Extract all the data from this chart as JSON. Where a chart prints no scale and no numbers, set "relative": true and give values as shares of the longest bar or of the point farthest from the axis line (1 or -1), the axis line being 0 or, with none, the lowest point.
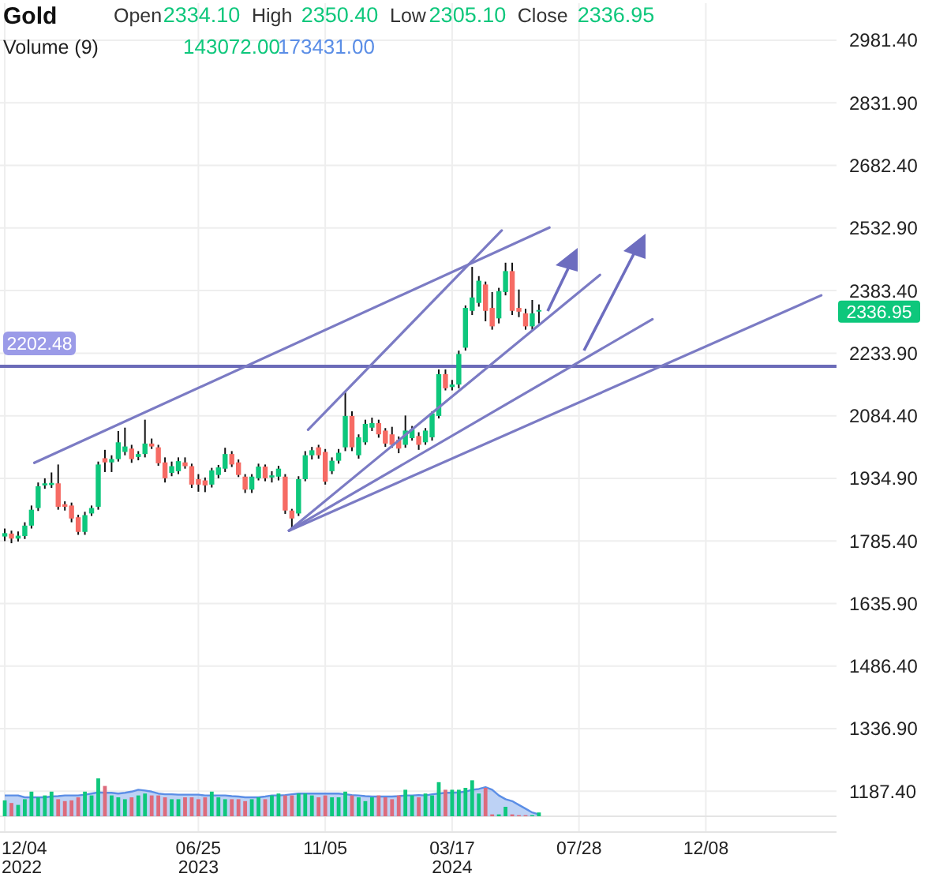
{
  "chart_data": [
    {
      "type": "candlestick",
      "title": "Gold",
      "annotations": [
        "Open",
        "2334.10",
        "High",
        "2350.40",
        "Low",
        "2305.10",
        "Close",
        "2336.95",
        "2336.95"
      ],
      "x": [
        "2022-12-04",
        "2022-12-11",
        "2022-12-18",
        "2022-12-25",
        "2023-01-01",
        "2023-01-08",
        "2023-01-15",
        "2023-01-22",
        "2023-01-29",
        "2023-02-05",
        "2023-02-12",
        "2023-02-19",
        "2023-02-26",
        "2023-03-05",
        "2023-03-12",
        "2023-03-19",
        "2023-03-26",
        "2023-04-02",
        "2023-04-09",
        "2023-04-16",
        "2023-04-23",
        "2023-04-30",
        "2023-05-07",
        "2023-05-14",
        "2023-05-21",
        "2023-05-28",
        "2023-06-04",
        "2023-06-11",
        "2023-06-18",
        "2023-06-25",
        "2023-07-02",
        "2023-07-09",
        "2023-07-16",
        "2023-07-23",
        "2023-07-30",
        "2023-08-06",
        "2023-08-13",
        "2023-08-20",
        "2023-08-27",
        "2023-09-03",
        "2023-09-10",
        "2023-09-17",
        "2023-09-24",
        "2023-10-01",
        "2023-10-08",
        "2023-10-15",
        "2023-10-22",
        "2023-10-29",
        "2023-11-05",
        "2023-11-12",
        "2023-11-19",
        "2023-11-26",
        "2023-12-03",
        "2023-12-10",
        "2023-12-17",
        "2023-12-24",
        "2023-12-31",
        "2024-01-07",
        "2024-01-14",
        "2024-01-21",
        "2024-01-28",
        "2024-02-04",
        "2024-02-11",
        "2024-02-18",
        "2024-02-25",
        "2024-03-03",
        "2024-03-10",
        "2024-03-17",
        "2024-03-24",
        "2024-03-31",
        "2024-04-07",
        "2024-04-14",
        "2024-04-21",
        "2024-04-28",
        "2024-05-05",
        "2024-05-12",
        "2024-05-19",
        "2024-05-26",
        "2024-06-02",
        "2024-06-09",
        "2024-06-16"
      ],
      "ohlc": [
        [
          1796,
          1815,
          1785,
          1804
        ],
        [
          1803,
          1810,
          1780,
          1791
        ],
        [
          1791,
          1808,
          1784,
          1798
        ],
        [
          1797,
          1830,
          1790,
          1822
        ],
        [
          1822,
          1870,
          1815,
          1860
        ],
        [
          1864,
          1925,
          1857,
          1916
        ],
        [
          1918,
          1935,
          1910,
          1923
        ],
        [
          1919,
          1949,
          1912,
          1924
        ],
        [
          1923,
          1968,
          1860,
          1867
        ],
        [
          1873,
          1880,
          1858,
          1867
        ],
        [
          1870,
          1877,
          1830,
          1839
        ],
        [
          1842,
          1848,
          1800,
          1807
        ],
        [
          1807,
          1855,
          1800,
          1847
        ],
        [
          1851,
          1870,
          1845,
          1864
        ],
        [
          1867,
          1975,
          1860,
          1968
        ],
        [
          1983,
          2003,
          1950,
          1973
        ],
        [
          1973,
          1990,
          1950,
          1981
        ],
        [
          1981,
          2048,
          1975,
          2021
        ],
        [
          1998,
          2056,
          1990,
          2011
        ],
        [
          2006,
          2015,
          1972,
          1981
        ],
        [
          1986,
          2000,
          1978,
          1993
        ],
        [
          1993,
          2075,
          1985,
          2018
        ],
        [
          2018,
          2030,
          2005,
          2011
        ],
        [
          2009,
          2015,
          1965,
          1971
        ],
        [
          1973,
          1985,
          1925,
          1935
        ],
        [
          1948,
          1975,
          1940,
          1964
        ],
        [
          1952,
          1985,
          1945,
          1976
        ],
        [
          1973,
          1985,
          1958,
          1964
        ],
        [
          1964,
          1970,
          1912,
          1920
        ],
        [
          1933,
          1945,
          1903,
          1920
        ],
        [
          1930,
          1937,
          1902,
          1918
        ],
        [
          1920,
          1960,
          1913,
          1954
        ],
        [
          1943,
          1967,
          1935,
          1961
        ],
        [
          1958,
          2008,
          1950,
          1993
        ],
        [
          1993,
          2000,
          1962,
          1968
        ],
        [
          1973,
          1980,
          1938,
          1943
        ],
        [
          1939,
          1945,
          1900,
          1908
        ],
        [
          1908,
          1945,
          1900,
          1939
        ],
        [
          1935,
          1970,
          1930,
          1963
        ],
        [
          1963,
          1968,
          1928,
          1935
        ],
        [
          1937,
          1952,
          1925,
          1942
        ],
        [
          1939,
          1965,
          1930,
          1958
        ],
        [
          1939,
          1945,
          1850,
          1858
        ],
        [
          1858,
          1862,
          1815,
          1839
        ],
        [
          1851,
          1940,
          1845,
          1933
        ],
        [
          1933,
          2000,
          1928,
          1990
        ],
        [
          1990,
          2010,
          1980,
          2002
        ],
        [
          2009,
          2015,
          1982,
          1990
        ],
        [
          1998,
          2005,
          1920,
          1927
        ],
        [
          1952,
          1985,
          1945,
          1977
        ],
        [
          1977,
          2005,
          1970,
          1996
        ],
        [
          2009,
          2144,
          2000,
          2084
        ],
        [
          2084,
          2095,
          2000,
          2009
        ],
        [
          1990,
          2040,
          1982,
          2033
        ],
        [
          2021,
          2075,
          2015,
          2065
        ],
        [
          2056,
          2080,
          2048,
          2067
        ],
        [
          2067,
          2075,
          2032,
          2040
        ],
        [
          2049,
          2055,
          2010,
          2018
        ],
        [
          2040,
          2058,
          2008,
          2015
        ],
        [
          2027,
          2035,
          1995,
          2006
        ],
        [
          2015,
          2085,
          2008,
          2049
        ],
        [
          2031,
          2060,
          2025,
          2052
        ],
        [
          2036,
          2045,
          2003,
          2015
        ],
        [
          2021,
          2055,
          2015,
          2049
        ],
        [
          2033,
          2095,
          2025,
          2090
        ],
        [
          2084,
          2195,
          2078,
          2184
        ],
        [
          2184,
          2195,
          2145,
          2150
        ],
        [
          2153,
          2170,
          2145,
          2159
        ],
        [
          2159,
          2240,
          2150,
          2232
        ],
        [
          2247,
          2348,
          2240,
          2342
        ],
        [
          2335,
          2440,
          2325,
          2367
        ],
        [
          2354,
          2418,
          2345,
          2407
        ],
        [
          2398,
          2405,
          2310,
          2335
        ],
        [
          2342,
          2380,
          2290,
          2298
        ],
        [
          2317,
          2390,
          2305,
          2382
        ],
        [
          2380,
          2450,
          2372,
          2430
        ],
        [
          2430,
          2450,
          2325,
          2335
        ],
        [
          2342,
          2386,
          2320,
          2333
        ],
        [
          2329,
          2340,
          2290,
          2298
        ],
        [
          2298,
          2361,
          2290,
          2329
        ],
        [
          2334.1,
          2350.4,
          2305.1,
          2336.95
        ]
      ],
      "colors": [
        "#0ec77c",
        "#f66b64",
        "#0ec77c",
        "#0ec77c",
        "#0ec77c",
        "#0ec77c",
        "#0ec77c",
        "#0ec77c",
        "#f66b64",
        "#f66b64",
        "#f66b64",
        "#f66b64",
        "#0ec77c",
        "#0ec77c",
        "#0ec77c",
        "#f66b64",
        "#0ec77c",
        "#0ec77c",
        "#0ec77c",
        "#f66b64",
        "#0ec77c",
        "#0ec77c",
        "#f66b64",
        "#f66b64",
        "#f66b64",
        "#0ec77c",
        "#0ec77c",
        "#f66b64",
        "#f66b64",
        "#f66b64",
        "#f66b64",
        "#0ec77c",
        "#0ec77c",
        "#0ec77c",
        "#f66b64",
        "#f66b64",
        "#f66b64",
        "#0ec77c",
        "#0ec77c",
        "#f66b64",
        "#0ec77c",
        "#0ec77c",
        "#f66b64",
        "#f66b64",
        "#0ec77c",
        "#0ec77c",
        "#0ec77c",
        "#f66b64",
        "#f66b64",
        "#0ec77c",
        "#0ec77c",
        "#0ec77c",
        "#f66b64",
        "#0ec77c",
        "#0ec77c",
        "#0ec77c",
        "#f66b64",
        "#f66b64",
        "#f66b64",
        "#f66b64",
        "#0ec77c",
        "#0ec77c",
        "#f66b64",
        "#0ec77c",
        "#0ec77c",
        "#0ec77c",
        "#f66b64",
        "#0ec77c",
        "#0ec77c",
        "#0ec77c",
        "#0ec77c",
        "#0ec77c",
        "#f66b64",
        "#f66b64",
        "#0ec77c",
        "#0ec77c",
        "#f66b64",
        "#f66b64",
        "#f66b64",
        "#0ec77c",
        "#0ec77c"
      ],
      "xlim": [
        "2022-11-29",
        "2025-04-24"
      ],
      "xticks": [
        {
          "value": "2022-12-04",
          "label": "12/04\n2022"
        },
        {
          "value": "2023-06-25",
          "label": "06/25\n2023"
        },
        {
          "value": "2023-11-05",
          "label": "11/05"
        },
        {
          "value": "2024-03-17",
          "label": "03/17\n2024"
        },
        {
          "value": "2024-07-28",
          "label": "07/28"
        },
        {
          "value": "2024-12-08",
          "label": "12/08"
        }
      ],
      "ylim": [
        1090,
        3070
      ],
      "yticks": [
        {
          "value": 1187.4,
          "label": "1187.40"
        },
        {
          "value": 1336.9,
          "label": "1336.90"
        },
        {
          "value": 1486.4,
          "label": "1486.40"
        },
        {
          "value": 1635.9,
          "label": "1635.90"
        },
        {
          "value": 1785.4,
          "label": "1785.40"
        },
        {
          "value": 1934.9,
          "label": "1934.90"
        },
        {
          "value": 2084.4,
          "label": "2084.40"
        },
        {
          "value": 2233.9,
          "label": "2233.90"
        },
        {
          "value": 2383.4,
          "label": "2383.40"
        },
        {
          "value": 2532.9,
          "label": "2532.90"
        },
        {
          "value": 2682.4,
          "label": "2682.40"
        },
        {
          "value": 2831.9,
          "label": "2831.90"
        },
        {
          "value": 2981.4,
          "label": "2981.40"
        }
      ],
      "grid": true,
      "ref_lines": [
        {
          "axis": "y",
          "value": 2202.48,
          "label": "2202.48",
          "color": "#6b6bb8"
        }
      ],
      "series": [
        {
          "type": "line",
          "color": "#7b7bc4",
          "x": [
            "2023-01-04",
            "2024-06-27"
          ],
          "values": [
            1972,
            2534
          ]
        },
        {
          "type": "line",
          "color": "#7b7bc4",
          "x": [
            "2023-10-18",
            "2024-05-08"
          ],
          "values": [
            2051,
            2527
          ]
        },
        {
          "type": "line",
          "color": "#7b7bc4",
          "x": [
            "2023-09-28",
            "2024-08-19"
          ],
          "values": [
            1810,
            2421
          ]
        },
        {
          "type": "line",
          "color": "#7b7bc4",
          "x": [
            "2023-09-28",
            "2024-10-13"
          ],
          "values": [
            1810,
            2315
          ]
        },
        {
          "type": "line",
          "color": "#7b7bc4",
          "x": [
            "2023-09-28",
            "2025-04-08"
          ],
          "values": [
            1810,
            2372
          ]
        }
      ]
    },
    {
      "type": "bar",
      "title": "Volume (9)",
      "annotations": [
        "143072.00",
        "173431.00"
      ],
      "relative": true,
      "x": [
        "2022-12-04",
        "2022-12-11",
        "2022-12-18",
        "2022-12-25",
        "2023-01-01",
        "2023-01-08",
        "2023-01-15",
        "2023-01-22",
        "2023-01-29",
        "2023-02-05",
        "2023-02-12",
        "2023-02-19",
        "2023-02-26",
        "2023-03-05",
        "2023-03-12",
        "2023-03-19",
        "2023-03-26",
        "2023-04-02",
        "2023-04-09",
        "2023-04-16",
        "2023-04-23",
        "2023-04-30",
        "2023-05-07",
        "2023-05-14",
        "2023-05-21",
        "2023-05-28",
        "2023-06-04",
        "2023-06-11",
        "2023-06-18",
        "2023-06-25",
        "2023-07-02",
        "2023-07-09",
        "2023-07-16",
        "2023-07-23",
        "2023-07-30",
        "2023-08-06",
        "2023-08-13",
        "2023-08-20",
        "2023-08-27",
        "2023-09-03",
        "2023-09-10",
        "2023-09-17",
        "2023-09-24",
        "2023-10-01",
        "2023-10-08",
        "2023-10-15",
        "2023-10-22",
        "2023-10-29",
        "2023-11-05",
        "2023-11-12",
        "2023-11-19",
        "2023-11-26",
        "2023-12-03",
        "2023-12-10",
        "2023-12-17",
        "2023-12-24",
        "2023-12-31",
        "2024-01-07",
        "2024-01-14",
        "2024-01-21",
        "2024-01-28",
        "2024-02-04",
        "2024-02-11",
        "2024-02-18",
        "2024-02-25",
        "2024-03-03",
        "2024-03-10",
        "2024-03-17",
        "2024-03-24",
        "2024-03-31",
        "2024-04-07",
        "2024-04-14",
        "2024-04-21",
        "2024-04-28",
        "2024-05-05",
        "2024-05-12",
        "2024-05-19",
        "2024-05-26",
        "2024-06-02",
        "2024-06-09",
        "2024-06-16"
      ],
      "xlim": [
        "2022-11-29",
        "2025-04-24"
      ],
      "series": [
        {
          "type": "bar",
          "values": [
            0.42,
            0.35,
            0.3,
            0.45,
            0.65,
            0.5,
            0.55,
            0.65,
            0.45,
            0.4,
            0.42,
            0.5,
            0.65,
            0.55,
            1,
            0.8,
            0.55,
            0.5,
            0.45,
            0.5,
            0.55,
            0.6,
            0.55,
            0.55,
            0.5,
            0.45,
            0.45,
            0.5,
            0.5,
            0.45,
            0.5,
            0.65,
            0.5,
            0.45,
            0.45,
            0.45,
            0.4,
            0.45,
            0.5,
            0.45,
            0.55,
            0.6,
            0.55,
            0.55,
            0.6,
            0.6,
            0.55,
            0.5,
            0.55,
            0.5,
            0.5,
            0.65,
            0.55,
            0.5,
            0.4,
            0.5,
            0.55,
            0.5,
            0.45,
            0.55,
            0.7,
            0.55,
            0.5,
            0.6,
            0.55,
            0.9,
            0.7,
            0.7,
            0.7,
            0.75,
            0.95,
            0.6,
            0.75,
            0.05,
            0.05,
            0.25,
            0.05,
            0.03,
            0.03,
            0.03,
            0.1
          ],
          "colors": [
            "#0ec77c",
            "#dd6b7c",
            "#0ec77c",
            "#0ec77c",
            "#0ec77c",
            "#0ec77c",
            "#0ec77c",
            "#0ec77c",
            "#dd6b7c",
            "#dd6b7c",
            "#dd6b7c",
            "#dd6b7c",
            "#0ec77c",
            "#0ec77c",
            "#0ec77c",
            "#dd6b7c",
            "#0ec77c",
            "#0ec77c",
            "#0ec77c",
            "#dd6b7c",
            "#0ec77c",
            "#0ec77c",
            "#dd6b7c",
            "#dd6b7c",
            "#dd6b7c",
            "#0ec77c",
            "#0ec77c",
            "#dd6b7c",
            "#dd6b7c",
            "#dd6b7c",
            "#dd6b7c",
            "#0ec77c",
            "#0ec77c",
            "#0ec77c",
            "#dd6b7c",
            "#dd6b7c",
            "#dd6b7c",
            "#0ec77c",
            "#0ec77c",
            "#dd6b7c",
            "#0ec77c",
            "#0ec77c",
            "#dd6b7c",
            "#dd6b7c",
            "#0ec77c",
            "#0ec77c",
            "#0ec77c",
            "#dd6b7c",
            "#dd6b7c",
            "#0ec77c",
            "#0ec77c",
            "#0ec77c",
            "#dd6b7c",
            "#0ec77c",
            "#0ec77c",
            "#0ec77c",
            "#dd6b7c",
            "#dd6b7c",
            "#dd6b7c",
            "#dd6b7c",
            "#0ec77c",
            "#0ec77c",
            "#dd6b7c",
            "#0ec77c",
            "#0ec77c",
            "#0ec77c",
            "#dd6b7c",
            "#0ec77c",
            "#0ec77c",
            "#0ec77c",
            "#0ec77c",
            "#0ec77c",
            "#dd6b7c",
            "#dd6b7c",
            "#0ec77c",
            "#0ec77c",
            "#dd6b7c",
            "#dd6b7c",
            "#dd6b7c",
            "#0ec77c",
            "#0ec77c"
          ]
        },
        {
          "type": "area",
          "color": "#5b8ee6",
          "values": [
            0.55,
            0.55,
            0.55,
            0.5,
            0.5,
            0.5,
            0.5,
            0.52,
            0.53,
            0.55,
            0.55,
            0.55,
            0.57,
            0.6,
            0.63,
            0.62,
            0.62,
            0.6,
            0.62,
            0.65,
            0.7,
            0.68,
            0.65,
            0.6,
            0.58,
            0.58,
            0.57,
            0.57,
            0.57,
            0.57,
            0.55,
            0.55,
            0.55,
            0.55,
            0.53,
            0.52,
            0.5,
            0.5,
            0.5,
            0.52,
            0.55,
            0.55,
            0.56,
            0.58,
            0.6,
            0.6,
            0.6,
            0.6,
            0.6,
            0.6,
            0.6,
            0.58,
            0.56,
            0.55,
            0.53,
            0.52,
            0.52,
            0.52,
            0.52,
            0.53,
            0.55,
            0.55,
            0.56,
            0.55,
            0.58,
            0.6,
            0.62,
            0.62,
            0.63,
            0.65,
            0.7,
            0.72,
            0.77,
            0.7,
            0.55,
            0.45,
            0.4,
            0.3,
            0.2,
            0.1,
            0.05
          ]
        }
      ]
    }
  ]
}
